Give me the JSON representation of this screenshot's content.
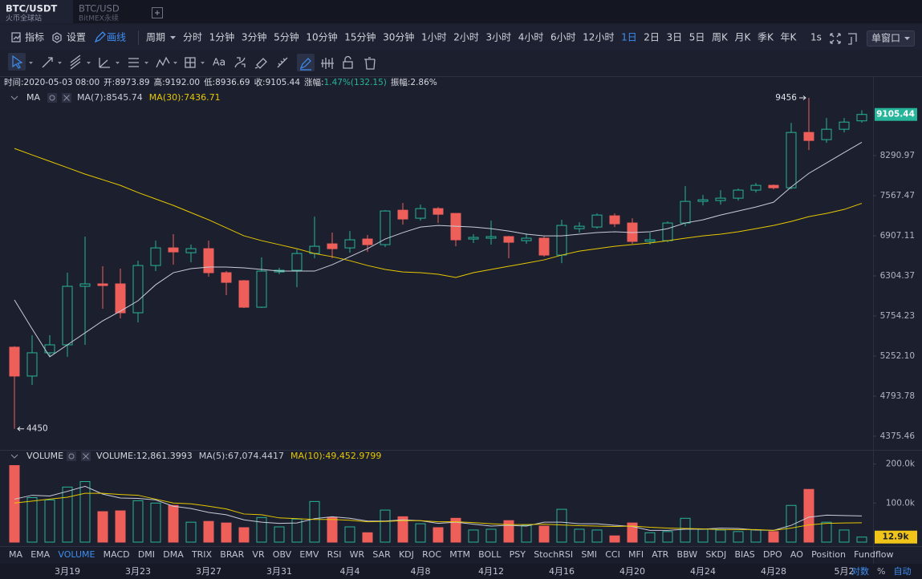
{
  "tabs": [
    {
      "title": "BTC/USDT",
      "subtitle": "火币全球站"
    },
    {
      "title": "BTC/USD",
      "subtitle": "BitMEX永续"
    }
  ],
  "toolbar": {
    "left": [
      "指标",
      "设置",
      "画线"
    ],
    "period_label": "周期",
    "periods": [
      "分时",
      "1分钟",
      "3分钟",
      "5分钟",
      "10分钟",
      "15分钟",
      "30分钟",
      "1小时",
      "2小时",
      "3小时",
      "4小时",
      "6小时",
      "12小时",
      "1日",
      "2日",
      "3日",
      "5日",
      "周K",
      "月K",
      "季K",
      "年K"
    ],
    "active_period": "1日",
    "refresh": "1s",
    "window": "单窗口"
  },
  "drawing_tools": {
    "text_tool": "Aa"
  },
  "info": [
    {
      "text": "时间:2020-05-03 08:00",
      "color": "#d6d8e0"
    },
    {
      "text": "开:8973.89",
      "color": "#d6d8e0"
    },
    {
      "text": "高:9192.00",
      "color": "#d6d8e0"
    },
    {
      "text": "低:8936.69",
      "color": "#d6d8e0"
    },
    {
      "text": "收:9105.44",
      "color": "#d6d8e0"
    },
    {
      "text": "涨幅:",
      "color": "#d6d8e0"
    },
    {
      "text": "1.47%(132.15)",
      "color": "#26b59a"
    },
    {
      "text": "振幅:2.86%",
      "color": "#d6d8e0"
    }
  ],
  "indicators": {
    "tabs": [
      "MA",
      "EMA",
      "VOLUME",
      "MACD",
      "DMI",
      "DMA",
      "TRIX",
      "BRAR",
      "VR",
      "OBV",
      "EMV",
      "RSI",
      "WR",
      "SAR",
      "KDJ",
      "ROC",
      "MTM",
      "BOLL",
      "PSY",
      "StochRSI",
      "SMI",
      "CCI",
      "MFI",
      "ATR",
      "BBW",
      "SKDJ",
      "BIAS",
      "DPO",
      "AO",
      "Position",
      "Fundflow"
    ],
    "active": "VOLUME"
  },
  "axis_options": [
    {
      "text": "对数",
      "color": "#3d8ef0"
    },
    {
      "text": "%",
      "color": "#b0b4c3"
    },
    {
      "text": "自动",
      "color": "#3d8ef0"
    }
  ],
  "chart_data": [
    {
      "type": "candlestick",
      "legend_title": "MA",
      "categories": [
        null,
        null,
        null,
        "3月19",
        null,
        null,
        null,
        "3月23",
        null,
        null,
        null,
        "3月27",
        null,
        null,
        null,
        "3月31",
        null,
        null,
        null,
        "4月4",
        null,
        null,
        null,
        "4月8",
        null,
        null,
        null,
        "4月12",
        null,
        null,
        null,
        "4月16",
        null,
        null,
        null,
        "4月20",
        null,
        null,
        null,
        "4月24",
        null,
        null,
        null,
        "4月28",
        null,
        null,
        null,
        "5月2",
        null
      ],
      "open": [
        5359,
        5018,
        5291,
        5388,
        6156,
        6190,
        6190,
        5796,
        6455,
        6719,
        6646,
        6707,
        6350,
        6235,
        5870,
        6361,
        6385,
        6634,
        6781,
        6719,
        6856,
        6769,
        7321,
        7189,
        7348,
        7268,
        6856,
        6869,
        6894,
        6831,
        6869,
        6610,
        7020,
        7046,
        7228,
        7111,
        6819,
        6831,
        7111,
        7470,
        7484,
        7525,
        7664,
        7748,
        7705,
        8740,
        8598,
        8804,
        8973.89
      ],
      "high": [
        5370,
        5507,
        5507,
        6350,
        6894,
        6444,
        6409,
        6526,
        6831,
        6932,
        6769,
        6831,
        6373,
        6246,
        6574,
        6420,
        6695,
        7215,
        6957,
        6982,
        6919,
        7321,
        7443,
        7416,
        7375,
        7268,
        6932,
        7150,
        6906,
        6944,
        6894,
        7163,
        7124,
        7268,
        7268,
        7189,
        6957,
        7137,
        7733,
        7580,
        7664,
        7692,
        7790,
        7762,
        8933,
        9456,
        9032,
        9032,
        9192
      ],
      "low": [
        4450,
        4918,
        5243,
        5243,
        5388,
        5849,
        5722,
        5670,
        6373,
        6467,
        6502,
        6292,
        6034,
        5860,
        5860,
        6327,
        6144,
        6562,
        6562,
        6646,
        6658,
        6732,
        7085,
        7150,
        7111,
        6744,
        6794,
        6769,
        6562,
        6781,
        6586,
        6490,
        6957,
        7020,
        7046,
        6781,
        6769,
        6806,
        7059,
        7402,
        7416,
        7484,
        7622,
        7678,
        7678,
        8397,
        8535,
        8740,
        8936.69
      ],
      "close": [
        5018,
        5291,
        5388,
        6156,
        6190,
        6167,
        5796,
        6455,
        6719,
        6658,
        6707,
        6350,
        6212,
        5870,
        6373,
        6385,
        6634,
        6744,
        6707,
        6844,
        6769,
        7308,
        7176,
        7348,
        7254,
        6844,
        6881,
        6894,
        6806,
        6869,
        6610,
        7072,
        7059,
        7241,
        7098,
        6819,
        6844,
        7111,
        7470,
        7497,
        7525,
        7664,
        7748,
        7705,
        8740,
        8582,
        8804,
        8949,
        9105.44
      ],
      "up_color": "#26b59a",
      "down_color": "#ef5f5a",
      "log_scale": true,
      "ylim": [
        4249,
        9631
      ],
      "yticks": [
        8290.97,
        7567.47,
        6907.11,
        6304.37,
        5754.23,
        {
          "value": 5252.1,
          "label": "5252.10"
        },
        4793.78,
        4375.46
      ],
      "series": [
        {
          "name": "MA(7):8545.74",
          "color": "#c9ccd8",
          "values": [
            5968,
            5588,
            5243,
            5388,
            5537,
            5691,
            5817,
            5957,
            6178,
            6350,
            6409,
            6432,
            6432,
            6420,
            6397,
            6373,
            6373,
            6373,
            6467,
            6586,
            6707,
            6856,
            6957,
            7046,
            7072,
            7059,
            7046,
            7020,
            6982,
            6932,
            6906,
            6906,
            6932,
            6957,
            6970,
            6957,
            6970,
            7020,
            7111,
            7163,
            7241,
            7308,
            7375,
            7456,
            7719,
            7963,
            8154,
            8350,
            8545.74
          ]
        },
        {
          "name": "MA(30):7436.71",
          "color": "#e6c800",
          "values": [
            8427,
            8304,
            8184,
            8066,
            7948,
            7848,
            7748,
            7622,
            7511,
            7402,
            7281,
            7163,
            7034,
            6906,
            6831,
            6769,
            6707,
            6634,
            6586,
            6526,
            6455,
            6397,
            6361,
            6350,
            6327,
            6281,
            6350,
            6397,
            6444,
            6490,
            6538,
            6610,
            6670,
            6707,
            6744,
            6769,
            6794,
            6831,
            6869,
            6906,
            6932,
            6970,
            7020,
            7072,
            7137,
            7215,
            7268,
            7334,
            7436.71
          ]
        }
      ]
    },
    {
      "type": "bar",
      "title": "VOLUME",
      "readout": "VOLUME:12,861.3993",
      "current_label": "12.9k",
      "current_color": "#f0c419",
      "values": [
        196000,
        114000,
        108000,
        141000,
        155000,
        78000,
        80000,
        106000,
        100000,
        94000,
        51000,
        53000,
        49000,
        37000,
        63000,
        39000,
        59000,
        104000,
        63000,
        39000,
        24000,
        82000,
        65000,
        47000,
        37000,
        61000,
        31000,
        33000,
        55000,
        43000,
        41000,
        84000,
        33000,
        31000,
        16000,
        49000,
        24000,
        27000,
        61000,
        33000,
        31000,
        27000,
        31000,
        27000,
        94000,
        135000,
        51000,
        31000,
        12861.3993
      ],
      "ylim": [
        0,
        230000
      ],
      "yticks": [
        {
          "value": 200000,
          "label": "200.0k"
        },
        {
          "value": 100000,
          "label": "100.0k"
        }
      ],
      "series": [
        {
          "name": "MA(5):67,074.4417",
          "color": "#c9ccd8",
          "values": [
            110000,
            120000,
            118000,
            130000,
            143000,
            123000,
            113000,
            112000,
            108000,
            92000,
            86000,
            76000,
            70000,
            57000,
            51000,
            48000,
            49000,
            60000,
            65000,
            61000,
            54000,
            54000,
            57000,
            55000,
            48000,
            51000,
            46000,
            41000,
            43000,
            41000,
            51000,
            51000,
            47000,
            47000,
            43000,
            40000,
            30000,
            30000,
            33000,
            33000,
            36000,
            35000,
            31000,
            30000,
            43000,
            64000,
            69000,
            68000,
            67074.4417
          ]
        },
        {
          "name": "MA(10):49,452.9799",
          "color": "#e6c800",
          "values": [
            100000,
            105000,
            110000,
            115000,
            125000,
            125000,
            122000,
            120000,
            110000,
            100000,
            98000,
            92000,
            85000,
            72000,
            70000,
            62000,
            60000,
            58000,
            58000,
            56000,
            52000,
            53000,
            55000,
            55000,
            52000,
            52000,
            50000,
            47000,
            45000,
            45000,
            46000,
            44000,
            42000,
            41000,
            40000,
            41000,
            38000,
            36000,
            35000,
            34000,
            32000,
            32000,
            32000,
            30000,
            36000,
            44000,
            48000,
            49000,
            49452.9799
          ]
        }
      ]
    }
  ]
}
